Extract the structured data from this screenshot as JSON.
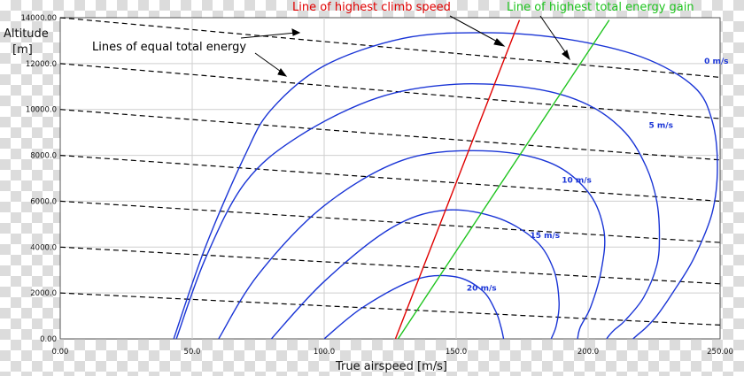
{
  "chart_data": {
    "type": "line",
    "xlabel": "True airspeed [m/s]",
    "ylabel_line1": "Altitude",
    "ylabel_line2": "[m]",
    "xlim": [
      0,
      250
    ],
    "ylim": [
      0,
      14000
    ],
    "xticks": [
      0,
      50,
      100,
      150,
      200,
      250
    ],
    "xtick_labels": [
      "0.00",
      "50.0",
      "100.0",
      "150.0",
      "200.0",
      "250.00"
    ],
    "yticks": [
      0,
      2000,
      4000,
      6000,
      8000,
      10000,
      12000,
      14000
    ],
    "ytick_labels": [
      "0.00",
      "2000.0",
      "4000.0",
      "6000.0",
      "8000.0",
      "10000.0",
      "12000.0",
      "14000.00"
    ],
    "grid": true,
    "annotations": {
      "equal_energy": "Lines of equal total energy",
      "climb_speed": "Line of highest climb speed",
      "energy_gain": "Line of highest total energy gain"
    },
    "colors": {
      "climb_contours": "#1a35d6",
      "climb_speed_line": "#e00000",
      "energy_gain_line": "#1fc41f",
      "energy_lines": "#000000"
    },
    "climb_rate_contours": [
      {
        "label": "0 m/s",
        "label_at": [
          244,
          12000
        ],
        "x": [
          43,
          55,
          70,
          80,
          100,
          130,
          160,
          190,
          220,
          240,
          247,
          249,
          247,
          240,
          232,
          226,
          222,
          219,
          217
        ],
        "y": [
          0,
          4000,
          8000,
          10000,
          11900,
          13100,
          13350,
          13100,
          12300,
          11000,
          9500,
          7500,
          5500,
          3500,
          2000,
          1000,
          500,
          200,
          0
        ]
      },
      {
        "label": "5 m/s",
        "label_at": [
          223,
          9200
        ],
        "x": [
          44,
          55,
          70,
          90,
          120,
          150,
          180,
          200,
          214,
          222,
          226,
          227,
          226,
          221,
          214,
          210,
          208,
          207
        ],
        "y": [
          0,
          3500,
          6800,
          8800,
          10500,
          11100,
          10900,
          10200,
          9000,
          7500,
          6000,
          4500,
          3200,
          1800,
          800,
          400,
          150,
          0
        ]
      },
      {
        "label": "10 m/s",
        "label_at": [
          190,
          6800
        ],
        "x": [
          60,
          75,
          100,
          130,
          160,
          185,
          200,
          206,
          205,
          201,
          197,
          196
        ],
        "y": [
          0,
          2800,
          5800,
          7800,
          8200,
          7700,
          6400,
          4700,
          3000,
          1400,
          500,
          0
        ]
      },
      {
        "label": "15 m/s",
        "label_at": [
          178,
          4400
        ],
        "x": [
          80,
          100,
          125,
          145,
          165,
          180,
          187,
          189,
          188,
          186
        ],
        "y": [
          0,
          2500,
          4800,
          5600,
          5300,
          4300,
          3000,
          1600,
          600,
          0
        ]
      },
      {
        "label": "20 m/s",
        "label_at": [
          154,
          2100
        ],
        "x": [
          100,
          115,
          135,
          150,
          160,
          165,
          167,
          168
        ],
        "y": [
          0,
          1400,
          2600,
          2700,
          2100,
          1200,
          500,
          0
        ]
      }
    ],
    "climb_speed_line": {
      "x": [
        127,
        174
      ],
      "y": [
        0,
        13900
      ]
    },
    "energy_gain_line": {
      "x": [
        128,
        208
      ],
      "y": [
        0,
        13900
      ]
    },
    "equal_energy_lines": [
      {
        "start": [
          0,
          2000
        ],
        "slope_per_ms": -5.6
      },
      {
        "start": [
          0,
          4000
        ],
        "slope_per_ms": -6.4
      },
      {
        "start": [
          0,
          6000
        ],
        "slope_per_ms": -7.2
      },
      {
        "start": [
          0,
          8000
        ],
        "slope_per_ms": -8.0
      },
      {
        "start": [
          0,
          10000
        ],
        "slope_per_ms": -8.8
      },
      {
        "start": [
          0,
          12000
        ],
        "slope_per_ms": -9.6
      },
      {
        "start": [
          0,
          14000
        ],
        "slope_per_ms": -10.4
      }
    ]
  }
}
